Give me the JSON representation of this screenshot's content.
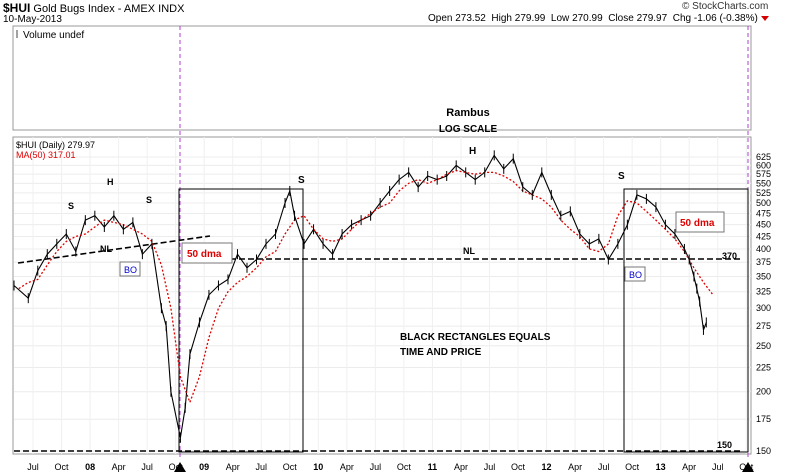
{
  "header": {
    "symbol": "$HUI",
    "name": "Gold Bugs Index - AMEX INDX",
    "date": "10-May-2013",
    "open_label": "Open",
    "open": "273.52",
    "high_label": "High",
    "high": "279.99",
    "low_label": "Low",
    "low": "270.99",
    "close_label": "Close",
    "close": "279.97",
    "chg_label": "Chg",
    "chg": "-1.06 (-0.38%)",
    "watermark": "© StockCharts.com"
  },
  "volume_panel": {
    "label": "Volume undef"
  },
  "legend": {
    "price": "$HUI (Daily) 279.97",
    "ma": "MA(50) 317.01"
  },
  "colors": {
    "price": "#000000",
    "ma": "#e00000",
    "vline": "#b040d0",
    "annot_red": "#e00000",
    "annot_blue": "#0000cc"
  },
  "annotations": {
    "title": "Rambus",
    "subtitle": "LOG SCALE",
    "rect_note_1": "BLACK RECTANGLES EQUALS",
    "rect_note_2": "TIME AND PRICE",
    "nl_left": "NL",
    "nl_mid": "NL",
    "level_370": "370",
    "level_150": "150",
    "bo_left": "BO",
    "bo_right": "BO",
    "dma_left": "50 dma",
    "dma_right": "50 dma",
    "s1": "S",
    "h1": "H",
    "s2": "S",
    "s3": "S",
    "h2": "H",
    "s4": "S"
  },
  "chart_data": {
    "type": "line",
    "title": "",
    "y_scale": "log",
    "ylim": [
      145,
      640
    ],
    "y_ticks": [
      150,
      175,
      200,
      225,
      250,
      275,
      300,
      325,
      350,
      375,
      400,
      425,
      450,
      475,
      500,
      525,
      550,
      575,
      600,
      625
    ],
    "x_tick_labels": [
      "Jul",
      "Oct",
      "08",
      "Apr",
      "Jul",
      "Oct",
      "09",
      "Apr",
      "Jul",
      "Oct",
      "10",
      "Apr",
      "Jul",
      "Oct",
      "11",
      "Apr",
      "Jul",
      "Oct",
      "12",
      "Apr",
      "Jul",
      "Oct",
      "13",
      "Apr",
      "Jul",
      "Oct"
    ],
    "x_tick_months": [
      6,
      9,
      12,
      15,
      18,
      21,
      24,
      27,
      30,
      33,
      36,
      39,
      42,
      45,
      48,
      51,
      54,
      57,
      60,
      63,
      66,
      69,
      72,
      75,
      78,
      81
    ],
    "x_month_note": "months since Jan 2007",
    "series": [
      {
        "name": "$HUI (Daily)",
        "x": [
          4.5,
          6,
          7,
          8,
          9,
          10,
          11,
          12,
          13,
          14,
          15,
          16,
          17,
          18,
          19,
          20,
          20.5,
          21,
          22,
          22.5,
          23,
          24,
          25,
          26,
          27,
          28,
          29,
          30,
          31,
          32,
          33,
          33.5,
          34,
          35,
          36,
          37,
          38,
          39,
          40,
          41,
          42,
          43,
          44,
          45,
          46,
          47,
          48,
          49,
          50,
          51,
          52,
          53,
          54,
          55,
          56,
          57,
          58,
          59,
          60,
          61,
          62,
          63,
          64,
          65,
          66,
          67,
          68,
          69,
          70,
          71,
          72,
          73,
          74,
          75,
          75.5,
          76,
          76.3,
          76.6,
          77,
          77.3
        ],
        "values": [
          335,
          315,
          360,
          390,
          410,
          430,
          395,
          460,
          470,
          445,
          470,
          440,
          455,
          390,
          410,
          300,
          275,
          200,
          160,
          185,
          240,
          280,
          320,
          335,
          345,
          390,
          365,
          380,
          410,
          430,
          500,
          530,
          470,
          410,
          440,
          410,
          390,
          430,
          450,
          460,
          470,
          500,
          530,
          560,
          580,
          540,
          570,
          560,
          570,
          600,
          580,
          560,
          580,
          630,
          590,
          620,
          540,
          520,
          580,
          520,
          470,
          480,
          430,
          410,
          420,
          380,
          410,
          450,
          520,
          510,
          490,
          450,
          430,
          400,
          380,
          350,
          330,
          310,
          270,
          280
        ]
      },
      {
        "name": "MA(50)",
        "x": [
          5,
          6,
          7,
          8,
          9,
          10,
          11,
          12,
          13,
          14,
          15,
          16,
          17,
          18,
          19,
          20,
          21,
          22,
          23,
          24,
          25,
          26,
          27,
          28,
          29,
          30,
          31,
          32,
          33,
          34,
          35,
          36,
          37,
          38,
          39,
          40,
          41,
          42,
          43,
          44,
          45,
          46,
          47,
          48,
          49,
          50,
          51,
          52,
          53,
          54,
          55,
          56,
          57,
          58,
          59,
          60,
          61,
          62,
          63,
          64,
          65,
          66,
          67,
          68,
          69,
          70,
          71,
          72,
          73,
          74,
          75,
          76,
          77,
          78
        ],
        "values": [
          330,
          340,
          345,
          370,
          395,
          415,
          425,
          430,
          445,
          460,
          455,
          450,
          440,
          430,
          415,
          370,
          300,
          215,
          190,
          215,
          260,
          300,
          325,
          340,
          350,
          365,
          385,
          395,
          430,
          460,
          470,
          440,
          420,
          415,
          420,
          440,
          460,
          475,
          490,
          500,
          530,
          550,
          560,
          550,
          560,
          575,
          585,
          580,
          575,
          580,
          580,
          570,
          555,
          530,
          520,
          510,
          490,
          460,
          440,
          425,
          400,
          395,
          410,
          470,
          505,
          500,
          480,
          460,
          440,
          420,
          395,
          365,
          340,
          320
        ]
      }
    ]
  }
}
